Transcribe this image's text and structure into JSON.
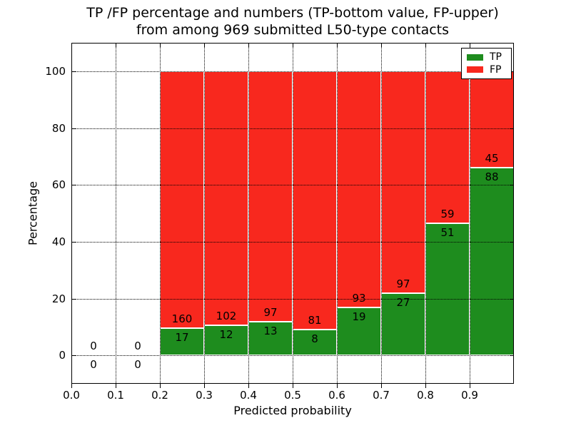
{
  "title": {
    "line1": "TP /FP percentage and numbers (TP-bottom value, FP-upper)",
    "line2": "from among 969 submitted L50-type contacts"
  },
  "axes": {
    "xlabel": "Predicted probability",
    "ylabel": "Percentage"
  },
  "legend": {
    "items": [
      {
        "label": "TP",
        "color": "#1e8c1e"
      },
      {
        "label": "FP",
        "color": "#f8281e"
      }
    ]
  },
  "chart_data": {
    "type": "bar",
    "stacked": true,
    "percent_normalized": true,
    "title": "TP /FP percentage and numbers (TP-bottom value, FP-upper) from among 969 submitted L50-type contacts",
    "xlabel": "Predicted probability",
    "ylabel": "Percentage",
    "bin_width": 0.1,
    "bin_starts": [
      0.0,
      0.1,
      0.2,
      0.3,
      0.4,
      0.5,
      0.6,
      0.7,
      0.8,
      0.9
    ],
    "series": [
      {
        "name": "TP",
        "color": "#1e8c1e",
        "counts": [
          0,
          0,
          17,
          12,
          13,
          8,
          19,
          27,
          51,
          88
        ]
      },
      {
        "name": "FP",
        "color": "#f8281e",
        "counts": [
          0,
          0,
          160,
          102,
          97,
          81,
          93,
          97,
          59,
          45
        ]
      }
    ],
    "tp_percent_of_bin": [
      0,
      0,
      9.6,
      10.5,
      11.8,
      9.0,
      17.0,
      21.8,
      46.4,
      66.2
    ],
    "xlim": [
      0.0,
      1.0
    ],
    "ylim": [
      -10,
      110
    ],
    "xticks": [
      "0.0",
      "0.1",
      "0.2",
      "0.3",
      "0.4",
      "0.5",
      "0.6",
      "0.7",
      "0.8",
      "0.9"
    ],
    "yticks": [
      "0",
      "20",
      "40",
      "60",
      "80",
      "100"
    ],
    "grid": true,
    "legend_position": "upper right"
  }
}
